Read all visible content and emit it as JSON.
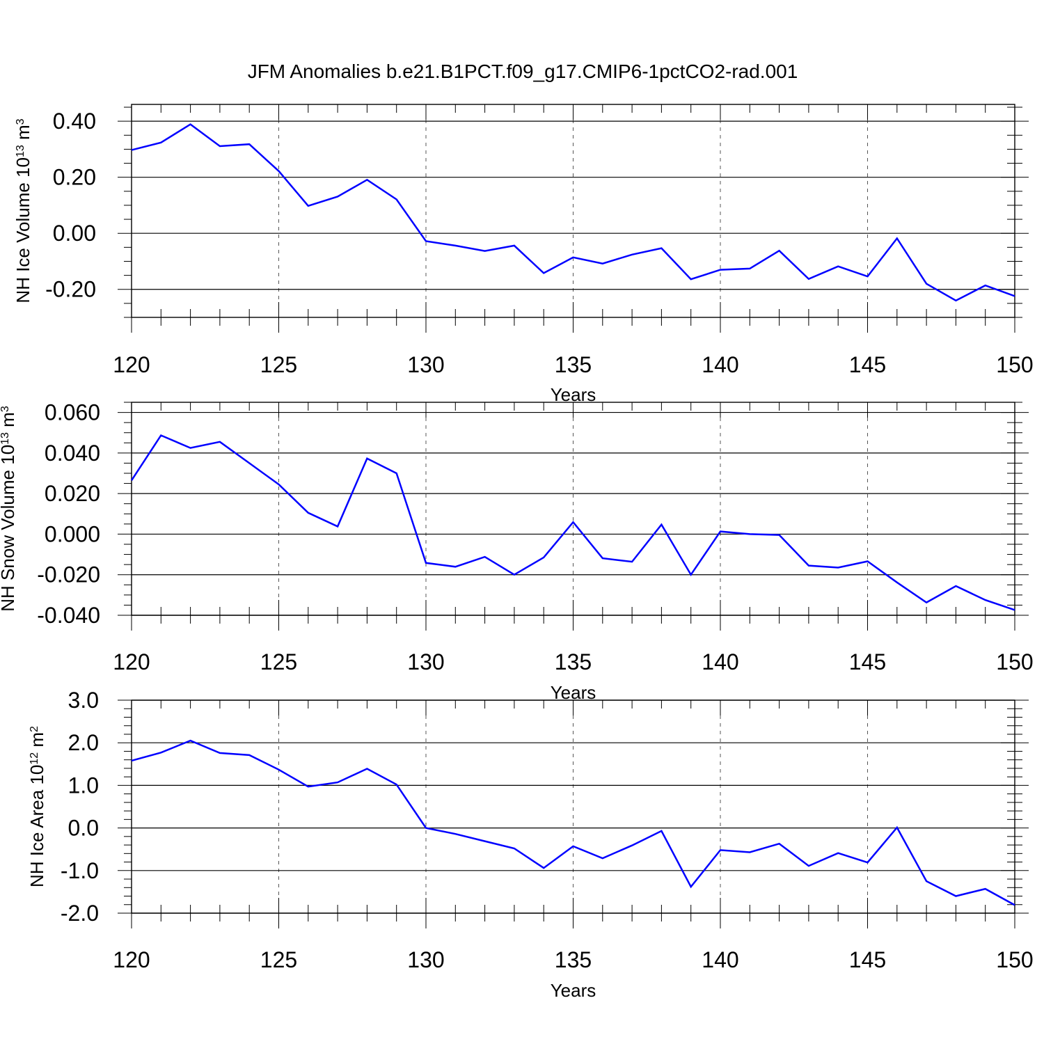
{
  "figure": {
    "title": "JFM Anomalies b.e21.B1PCT.f09_g17.CMIP6-1pctCO2-rad.001"
  },
  "colors": {
    "series": "#0000ff",
    "axis": "#000000",
    "grid": "#555555"
  },
  "chart_data": [
    {
      "type": "line",
      "title": "",
      "xlabel": "Years",
      "ylabel": {
        "text": "NH Ice Volume 10",
        "superscript": "13",
        "unit": " m",
        "unit_superscript": "3"
      },
      "xlim": [
        120,
        150
      ],
      "ylim": [
        -0.3,
        0.46
      ],
      "x_ticks": [
        120,
        125,
        130,
        135,
        140,
        145,
        150
      ],
      "x_tick_labels": [
        "120",
        "125",
        "130",
        "135",
        "140",
        "145",
        "150"
      ],
      "y_ticks": [
        0.4,
        0.2,
        0.0,
        -0.2
      ],
      "y_tick_labels": [
        "0.40",
        "0.20",
        "0.00",
        "-0.20"
      ],
      "y_minor_step": 0.05,
      "x_minor_step": 1,
      "reference_lines_y": [
        0.4,
        0.2,
        0.0,
        -0.2
      ],
      "grid_x": "dashed at major ticks",
      "series": [
        {
          "x": [
            120,
            121,
            122,
            123,
            124,
            125,
            126,
            127,
            128,
            129,
            130,
            131,
            132,
            133,
            134,
            135,
            136,
            137,
            138,
            139,
            140,
            141,
            142,
            143,
            144,
            145,
            146,
            147,
            148,
            149,
            150
          ],
          "values": [
            0.297,
            0.324,
            0.389,
            0.311,
            0.318,
            0.222,
            0.098,
            0.131,
            0.191,
            0.121,
            -0.028,
            -0.044,
            -0.063,
            -0.044,
            -0.142,
            -0.086,
            -0.108,
            -0.076,
            -0.053,
            -0.164,
            -0.13,
            -0.126,
            -0.062,
            -0.163,
            -0.118,
            -0.154,
            -0.018,
            -0.18,
            -0.24,
            -0.186,
            -0.224
          ]
        }
      ]
    },
    {
      "type": "line",
      "title": "",
      "xlabel": "Years",
      "ylabel": {
        "text": "NH Snow Volume 10",
        "superscript": "13",
        "unit": " m",
        "unit_superscript": "3"
      },
      "xlim": [
        120,
        150
      ],
      "ylim": [
        -0.04,
        0.065
      ],
      "x_ticks": [
        120,
        125,
        130,
        135,
        140,
        145,
        150
      ],
      "x_tick_labels": [
        "120",
        "125",
        "130",
        "135",
        "140",
        "145",
        "150"
      ],
      "y_ticks": [
        0.06,
        0.04,
        0.02,
        0.0,
        -0.02,
        -0.04
      ],
      "y_tick_labels": [
        "0.060",
        "0.040",
        "0.020",
        "0.000",
        "-0.020",
        "-0.040"
      ],
      "y_minor_step": 0.005,
      "x_minor_step": 1,
      "reference_lines_y": [
        0.06,
        0.04,
        0.02,
        0.0,
        -0.02,
        -0.04
      ],
      "grid_x": "dashed at major ticks",
      "series": [
        {
          "x": [
            120,
            121,
            122,
            123,
            124,
            125,
            126,
            127,
            128,
            129,
            130,
            131,
            132,
            133,
            134,
            135,
            136,
            137,
            138,
            139,
            140,
            141,
            142,
            143,
            144,
            145,
            146,
            147,
            148,
            149,
            150
          ],
          "values": [
            0.0265,
            0.0487,
            0.0425,
            0.0455,
            0.035,
            0.0245,
            0.0105,
            0.0038,
            0.0373,
            0.03,
            -0.0142,
            -0.0161,
            -0.0112,
            -0.02,
            -0.0115,
            0.0059,
            -0.0119,
            -0.0136,
            0.0047,
            -0.02,
            0.0013,
            0.0,
            -0.0004,
            -0.0155,
            -0.0165,
            -0.0134,
            -0.0238,
            -0.0337,
            -0.0256,
            -0.0325,
            -0.0374
          ]
        }
      ]
    },
    {
      "type": "line",
      "title": "",
      "xlabel": "Years",
      "ylabel": {
        "text": "NH Ice Area 10",
        "superscript": "12",
        "unit": " m",
        "unit_superscript": "2"
      },
      "xlim": [
        120,
        150
      ],
      "ylim": [
        -2.0,
        3.0
      ],
      "x_ticks": [
        120,
        125,
        130,
        135,
        140,
        145,
        150
      ],
      "x_tick_labels": [
        "120",
        "125",
        "130",
        "135",
        "140",
        "145",
        "150"
      ],
      "y_ticks": [
        3.0,
        2.0,
        1.0,
        0.0,
        -1.0,
        -2.0
      ],
      "y_tick_labels": [
        "3.0",
        "2.0",
        "1.0",
        "0.0",
        "-1.0",
        "-2.0"
      ],
      "y_minor_step": 0.2,
      "x_minor_step": 1,
      "reference_lines_y": [
        3.0,
        2.0,
        1.0,
        0.0,
        -1.0,
        -2.0
      ],
      "grid_x": "dashed at major ticks",
      "series": [
        {
          "x": [
            120,
            121,
            122,
            123,
            124,
            125,
            126,
            127,
            128,
            129,
            130,
            131,
            132,
            133,
            134,
            135,
            136,
            137,
            138,
            139,
            140,
            141,
            142,
            143,
            144,
            145,
            146,
            147,
            148,
            149,
            150
          ],
          "values": [
            1.58,
            1.77,
            2.05,
            1.76,
            1.71,
            1.37,
            0.97,
            1.07,
            1.39,
            1.02,
            0.0,
            -0.14,
            -0.31,
            -0.48,
            -0.94,
            -0.43,
            -0.71,
            -0.41,
            -0.07,
            -1.38,
            -0.52,
            -0.57,
            -0.37,
            -0.89,
            -0.59,
            -0.81,
            0.01,
            -1.25,
            -1.6,
            -1.43,
            -1.81
          ]
        }
      ]
    }
  ]
}
